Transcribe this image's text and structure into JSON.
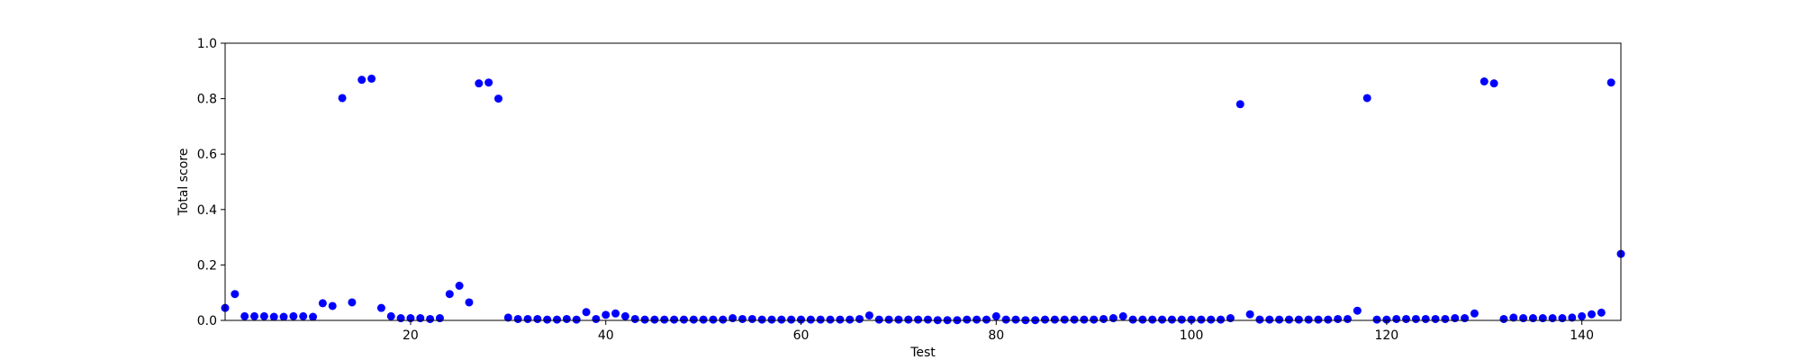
{
  "chart_data": {
    "type": "scatter",
    "xlabel": "Test",
    "ylabel": "Total score",
    "xlim": [
      1,
      144
    ],
    "ylim": [
      0.0,
      1.0
    ],
    "x_ticks": [
      20,
      40,
      60,
      80,
      100,
      120,
      140
    ],
    "y_ticks": [
      0.0,
      0.2,
      0.4,
      0.6,
      0.8,
      1.0
    ],
    "x_tick_labels": [
      "20",
      "40",
      "60",
      "80",
      "100",
      "120",
      "140"
    ],
    "y_tick_labels": [
      "0.0",
      "0.2",
      "0.4",
      "0.6",
      "0.8",
      "1.0"
    ],
    "grid": false,
    "marker_color": "#0000ff",
    "series": [
      {
        "x": [
          1,
          2,
          3,
          4,
          5,
          6,
          7,
          8,
          9,
          10,
          11,
          12,
          13,
          14,
          15,
          16,
          17,
          18,
          19,
          20,
          21,
          22,
          23,
          24,
          25,
          26,
          27,
          28,
          29,
          30,
          31,
          32,
          33,
          34,
          35,
          36,
          37,
          38,
          39,
          40,
          41,
          42,
          43,
          44,
          45,
          46,
          47,
          48,
          49,
          50,
          51,
          52,
          53,
          54,
          55,
          56,
          57,
          58,
          59,
          60,
          61,
          62,
          63,
          64,
          65,
          66,
          67,
          68,
          69,
          70,
          71,
          72,
          73,
          74,
          75,
          76,
          77,
          78,
          79,
          80,
          81,
          82,
          83,
          84,
          85,
          86,
          87,
          88,
          89,
          90,
          91,
          92,
          93,
          94,
          95,
          96,
          97,
          98,
          99,
          100,
          101,
          102,
          103,
          104,
          105,
          106,
          107,
          108,
          109,
          110,
          111,
          112,
          113,
          114,
          115,
          116,
          117,
          118,
          119,
          120,
          121,
          122,
          123,
          124,
          125,
          126,
          127,
          128,
          129,
          130,
          131,
          132,
          133,
          134,
          135,
          136,
          137,
          138,
          139,
          140,
          141,
          142,
          143,
          144
        ],
        "y": [
          0.045,
          0.095,
          0.015,
          0.015,
          0.015,
          0.013,
          0.013,
          0.015,
          0.015,
          0.013,
          0.062,
          0.052,
          0.802,
          0.065,
          0.868,
          0.872,
          0.045,
          0.015,
          0.008,
          0.008,
          0.008,
          0.005,
          0.008,
          0.095,
          0.125,
          0.065,
          0.855,
          0.858,
          0.8,
          0.01,
          0.005,
          0.005,
          0.005,
          0.003,
          0.003,
          0.005,
          0.003,
          0.03,
          0.005,
          0.02,
          0.025,
          0.015,
          0.005,
          0.003,
          0.003,
          0.003,
          0.003,
          0.003,
          0.003,
          0.003,
          0.003,
          0.003,
          0.008,
          0.005,
          0.005,
          0.003,
          0.003,
          0.003,
          0.003,
          0.003,
          0.003,
          0.003,
          0.003,
          0.003,
          0.003,
          0.005,
          0.018,
          0.003,
          0.003,
          0.003,
          0.003,
          0.003,
          0.003,
          0.001,
          0.001,
          0.001,
          0.003,
          0.003,
          0.003,
          0.015,
          0.003,
          0.003,
          0.001,
          0.001,
          0.003,
          0.003,
          0.003,
          0.003,
          0.003,
          0.003,
          0.005,
          0.008,
          0.015,
          0.003,
          0.003,
          0.003,
          0.003,
          0.003,
          0.003,
          0.003,
          0.003,
          0.003,
          0.003,
          0.008,
          0.78,
          0.022,
          0.003,
          0.003,
          0.003,
          0.003,
          0.003,
          0.003,
          0.003,
          0.003,
          0.005,
          0.005,
          0.035,
          0.802,
          0.003,
          0.003,
          0.005,
          0.005,
          0.005,
          0.005,
          0.005,
          0.005,
          0.008,
          0.008,
          0.025,
          0.862,
          0.855,
          0.005,
          0.01,
          0.008,
          0.008,
          0.008,
          0.008,
          0.008,
          0.01,
          0.015,
          0.022,
          0.028,
          0.858,
          0.24
        ]
      }
    ]
  }
}
